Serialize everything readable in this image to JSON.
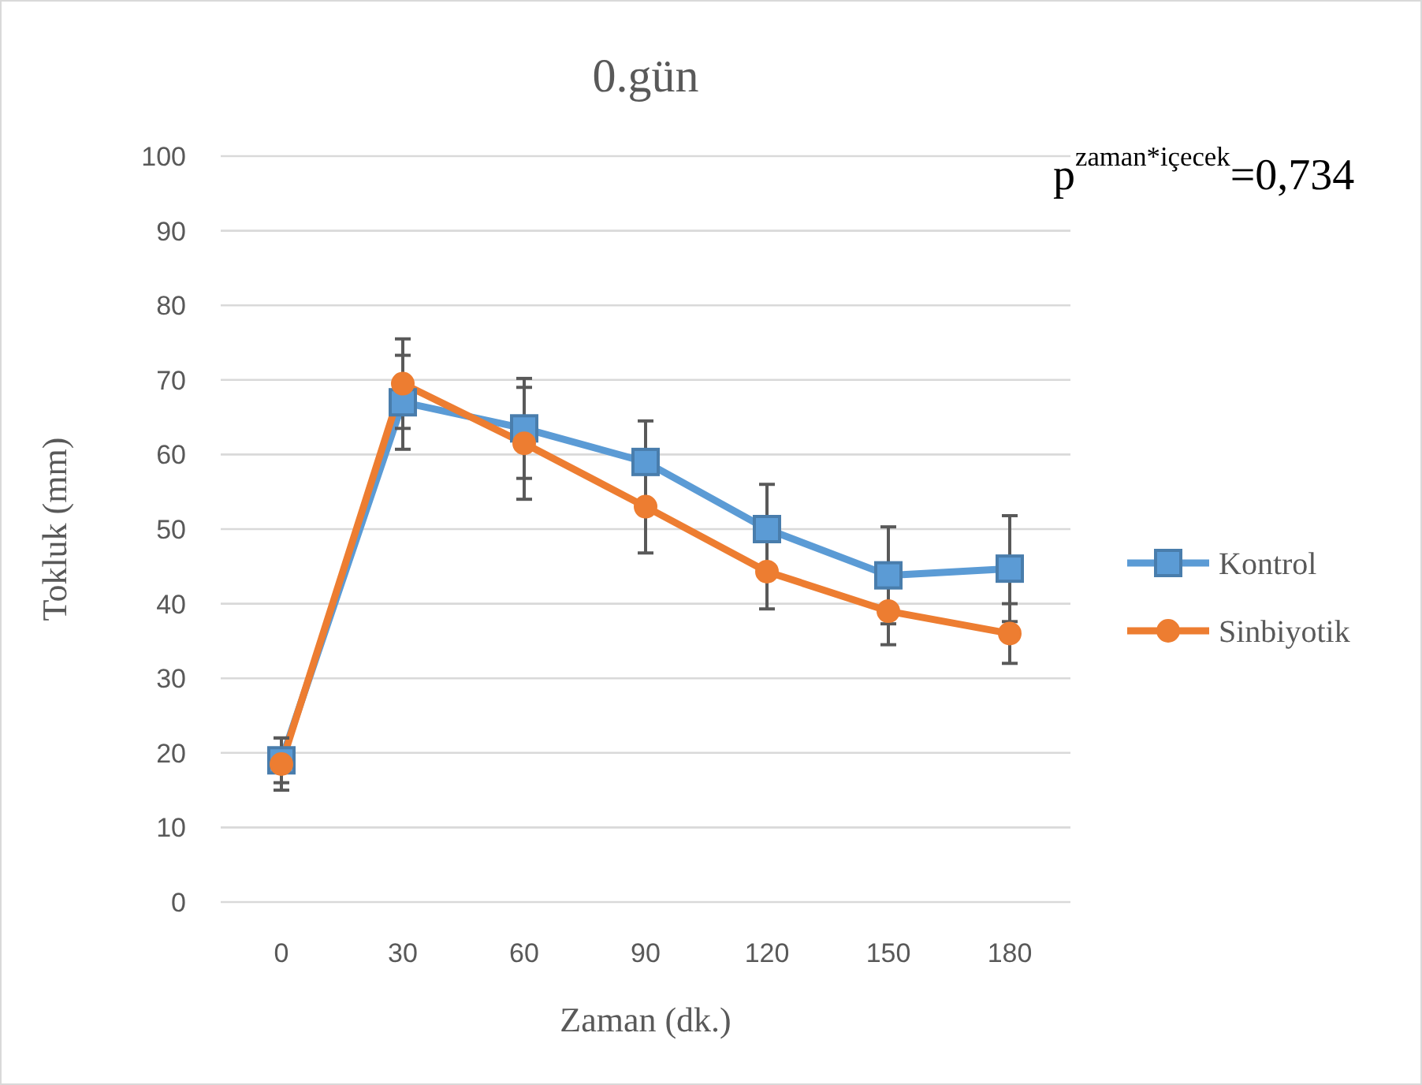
{
  "chart_data": {
    "type": "line",
    "title": "0.gün",
    "xlabel": "Zaman (dk.)",
    "ylabel": "Tokluk (mm)",
    "categories": [
      "0",
      "30",
      "60",
      "90",
      "120",
      "150",
      "180"
    ],
    "series": [
      {
        "name": "Kontrol",
        "color": "#5b9bd5",
        "marker": "square",
        "values": [
          19,
          67,
          63.5,
          59,
          50,
          43.8,
          44.7
        ],
        "errors": [
          3,
          6.3,
          6.7,
          5.5,
          6,
          6.5,
          7.1
        ]
      },
      {
        "name": "Sinbiyotik",
        "color": "#ed7d31",
        "marker": "circle",
        "values": [
          18.5,
          69.5,
          61.5,
          53,
          44.3,
          39,
          36
        ],
        "errors": [
          3.5,
          6,
          7.5,
          6.2,
          5,
          4.5,
          4
        ]
      }
    ],
    "ylim": [
      0,
      100
    ],
    "yticks": [
      0,
      10,
      20,
      30,
      40,
      50,
      60,
      70,
      80,
      90,
      100
    ],
    "grid": "y",
    "legend": "right",
    "annotations": [
      "p$^{zaman*içecek}$=0,734"
    ]
  }
}
